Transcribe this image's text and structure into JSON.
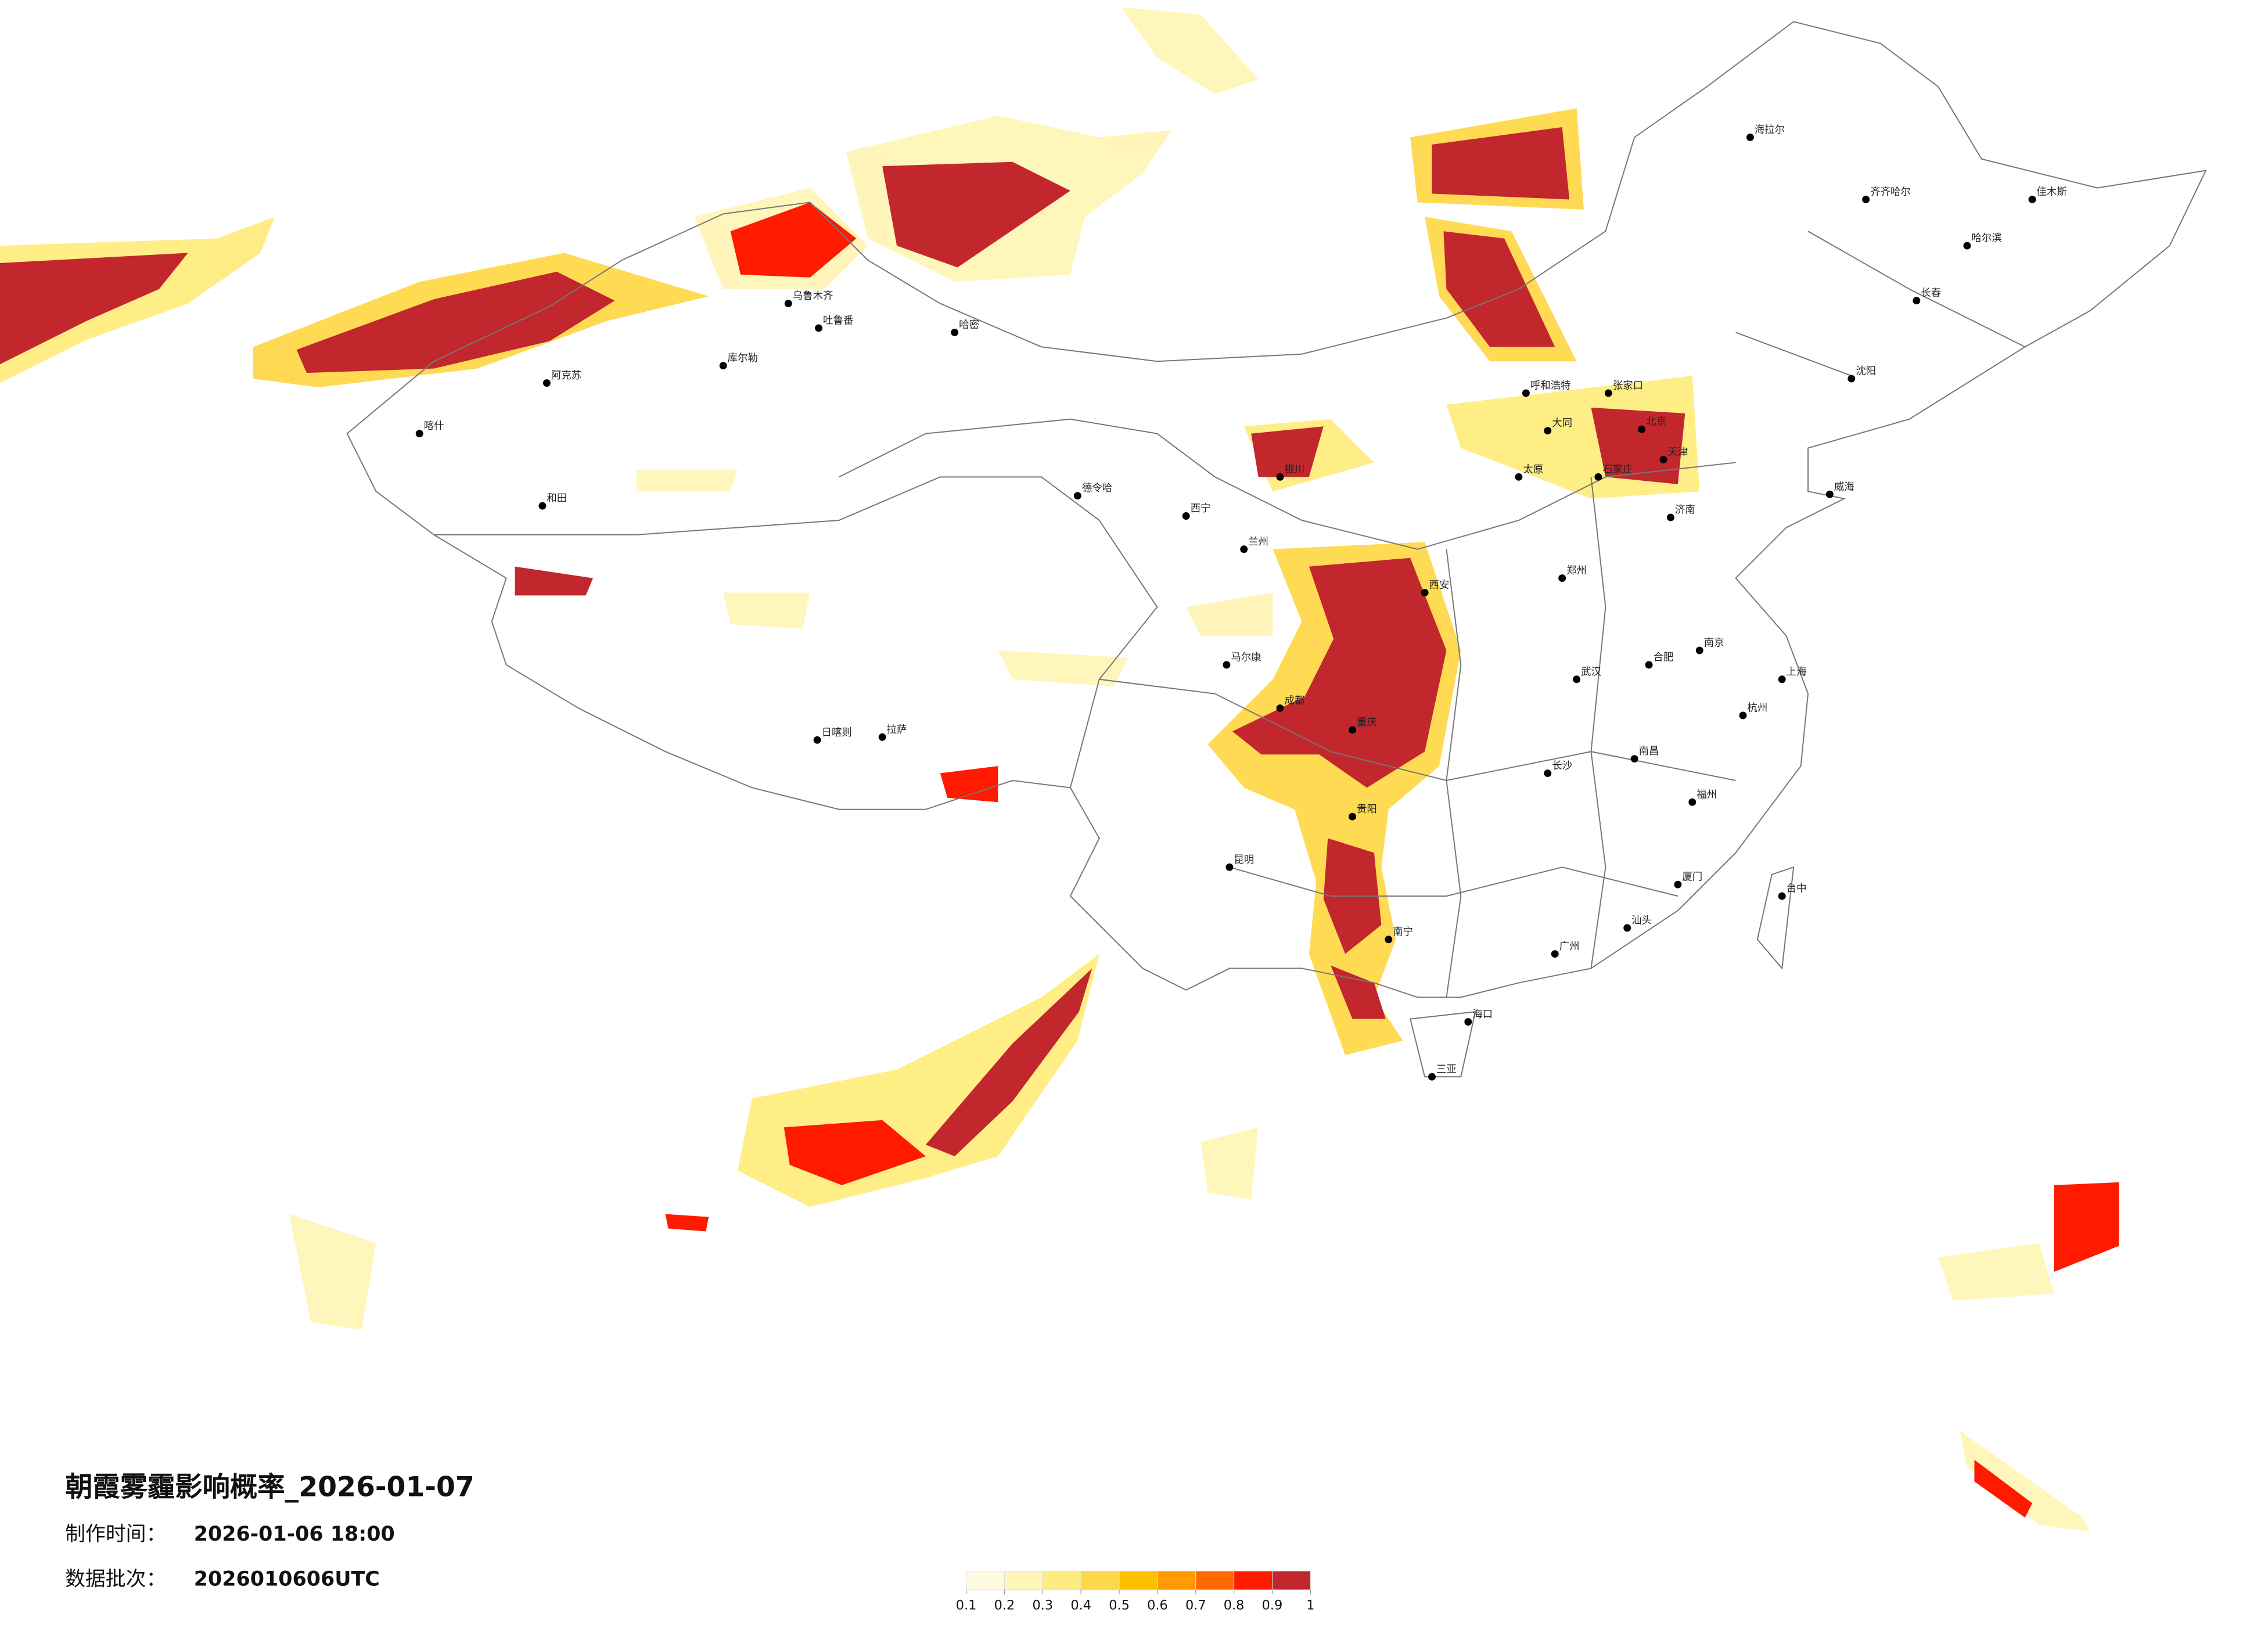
{
  "title": "朝霞雾霾影响概率_2026-01-07",
  "production_time": {
    "label": "制作时间：",
    "value": "2026-01-06 18:00"
  },
  "batch": {
    "label": "数据批次：",
    "value": "2026010606UTC"
  },
  "legend": {
    "ticks": [
      0.1,
      0.2,
      0.3,
      0.4,
      0.5,
      0.6,
      0.7,
      0.8,
      0.9,
      1
    ],
    "colors": [
      "#fffbe3",
      "#fff5b8",
      "#ffec80",
      "#ffd84a",
      "#ffc000",
      "#ff9a00",
      "#ff6a00",
      "#ff1a00",
      "#c1272d"
    ]
  },
  "cities": [
    "北京",
    "天津",
    "上海",
    "广州",
    "重庆",
    "成都",
    "武汉",
    "西安",
    "郑州",
    "哈尔滨",
    "长春",
    "沈阳",
    "呼和浩特",
    "乌鲁木齐",
    "拉萨",
    "西宁",
    "兰州",
    "银川",
    "昆明",
    "贵阳",
    "南宁",
    "海口",
    "福州",
    "南昌",
    "长沙",
    "杭州",
    "南京",
    "合肥",
    "济南",
    "石家庄",
    "太原",
    "台中",
    "海拉尔",
    "喀什",
    "和田",
    "日喀则",
    "阿克苏",
    "库尔勒",
    "哈密",
    "吐鲁番",
    "德令哈",
    "马尔康",
    "三亚",
    "张家口",
    "大同",
    "威海",
    "厦门",
    "汕头",
    "齐齐哈尔",
    "佳木斯"
  ]
}
